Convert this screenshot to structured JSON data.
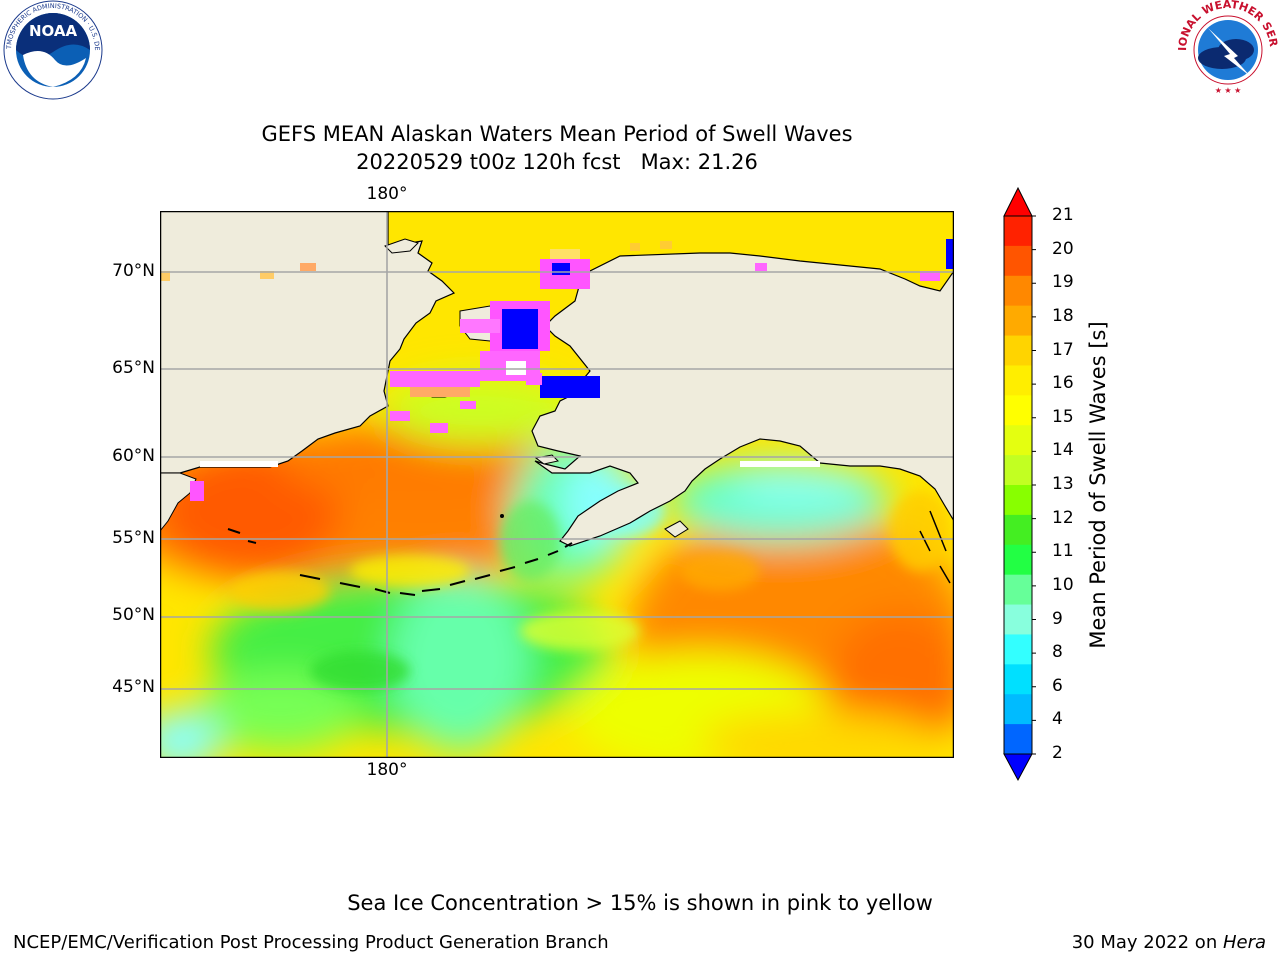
{
  "title": {
    "line1": "GEFS MEAN Alaskan Waters Mean Period of Swell Waves",
    "line2": "20220529 t00z 120h fcst   Max: 21.26"
  },
  "logos": {
    "noaa": {
      "text": "NOAA",
      "ring_text": "NATIONAL OCEANIC AND ATMOSPHERIC ADMINISTRATION · U.S. DEPARTMENT OF COMMERCE"
    },
    "nws": {
      "ring_text": "NATIONAL WEATHER SERVICE"
    }
  },
  "map": {
    "lat_labels": [
      "70°N",
      "65°N",
      "60°N",
      "55°N",
      "50°N",
      "45°N"
    ],
    "lon_label_top": "180°",
    "lon_label_bottom": "180°",
    "land_color": "#efecdc",
    "ocean_dominant_colors": [
      "#ff7a00",
      "#ffd800",
      "#c8ff00",
      "#33ee33",
      "#66ffaa",
      "#7fffff"
    ],
    "ice_colors": [
      "#ff33ff",
      "#ffd700",
      "#0000ff"
    ]
  },
  "colorbar": {
    "title": "Mean Period of Swell Waves [s]",
    "ticks": [
      "21",
      "20",
      "19",
      "18",
      "17",
      "16",
      "15",
      "14",
      "13",
      "12",
      "11",
      "10",
      "9",
      "8",
      "6",
      "4",
      "2"
    ],
    "colors_top_to_bottom": [
      "#ff2200",
      "#ff5500",
      "#ff8800",
      "#ffaa00",
      "#ffd400",
      "#ffee00",
      "#ffff00",
      "#e4ff10",
      "#c2ff22",
      "#88ff00",
      "#44ee22",
      "#22ff44",
      "#66ff99",
      "#88ffdd",
      "#33ffff",
      "#00e0ff",
      "#00bbff",
      "#0066ff"
    ],
    "extend_top_color": "#ff0000",
    "extend_bottom_color": "#0000ff"
  },
  "note": "Sea Ice Concentration > 15% is shown in pink to yellow",
  "footer": {
    "left": "NCEP/EMC/Verification Post Processing Product Generation Branch",
    "right_date": "30 May 2022 on ",
    "right_machine": "Hera"
  }
}
